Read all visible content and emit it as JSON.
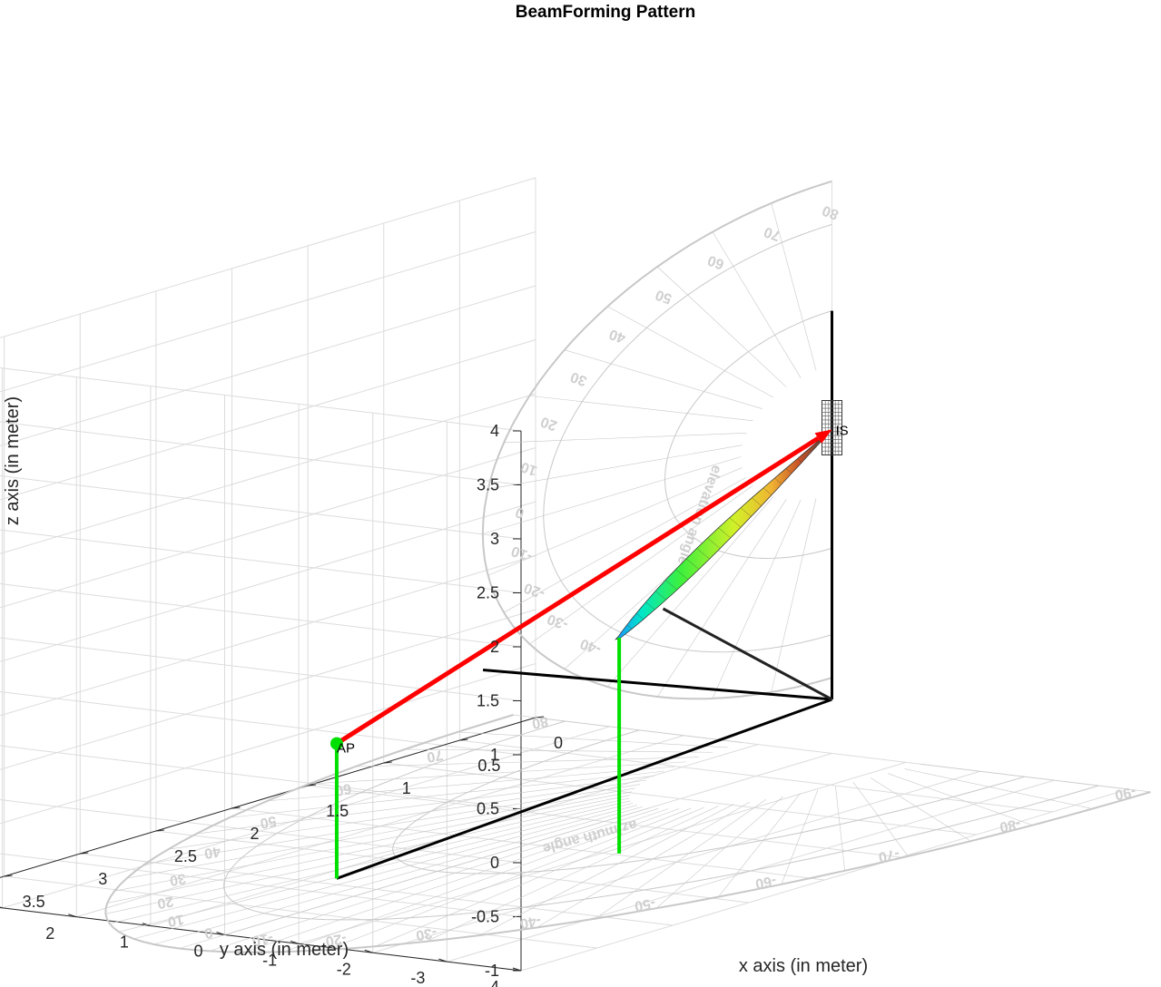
{
  "chart_data": {
    "type": "surface3d",
    "title": "BeamForming Pattern",
    "xlabel": "x axis (in meter)",
    "ylabel": "y axis (in meter)",
    "zlabel": "z axis (in meter)",
    "xlim": [
      0,
      4
    ],
    "ylim": [
      -4,
      4
    ],
    "zlim": [
      -1,
      4
    ],
    "x_ticks": [
      "0",
      "0.5",
      "1",
      "1.5",
      "2",
      "2.5",
      "3",
      "3.5",
      "4"
    ],
    "y_ticks": [
      "-4",
      "-3",
      "-2",
      "-1",
      "0",
      "1",
      "2",
      "3",
      "4"
    ],
    "z_ticks": [
      "-1",
      "-0.5",
      "0",
      "0.5",
      "1",
      "1.5",
      "2",
      "2.5",
      "3",
      "3.5",
      "4"
    ],
    "grid": true,
    "points": [
      {
        "label": "AP",
        "x": 3.75,
        "y": -1.0,
        "z": 0.75
      },
      {
        "label": "IS",
        "x": 0,
        "y": 0,
        "z": 2
      }
    ],
    "ray": {
      "from": "AP",
      "to": "IS"
    },
    "beam_lobe": {
      "apex": "IS",
      "tip": {
        "x": 3.5,
        "y": -4.3,
        "z": 1.9
      }
    },
    "protractor_labels": {
      "azimuth_word": "azimuth angle",
      "elevation_word": "elevation angle",
      "azimuth_numbers": [
        "-90",
        "-80",
        "-70",
        "-60",
        "-50",
        "-40",
        "-30",
        "-20",
        "-10",
        "0",
        "10",
        "20",
        "30",
        "40",
        "50",
        "60",
        "70",
        "80"
      ],
      "elevation_numbers": [
        "80",
        "70",
        "60",
        "50",
        "40",
        "30",
        "20",
        "10",
        "0",
        "-10",
        "-20",
        "-30",
        "-40"
      ]
    },
    "colors": {
      "ray": "#ff0000",
      "ap_marker": "#00e000",
      "ap_stem": "#00e000",
      "structure": "#000000",
      "beam_colormap": [
        "#1e90ff",
        "#00e6c8",
        "#3cf03c",
        "#d2f028",
        "#f0b432",
        "#c85028",
        "#505050"
      ]
    }
  }
}
